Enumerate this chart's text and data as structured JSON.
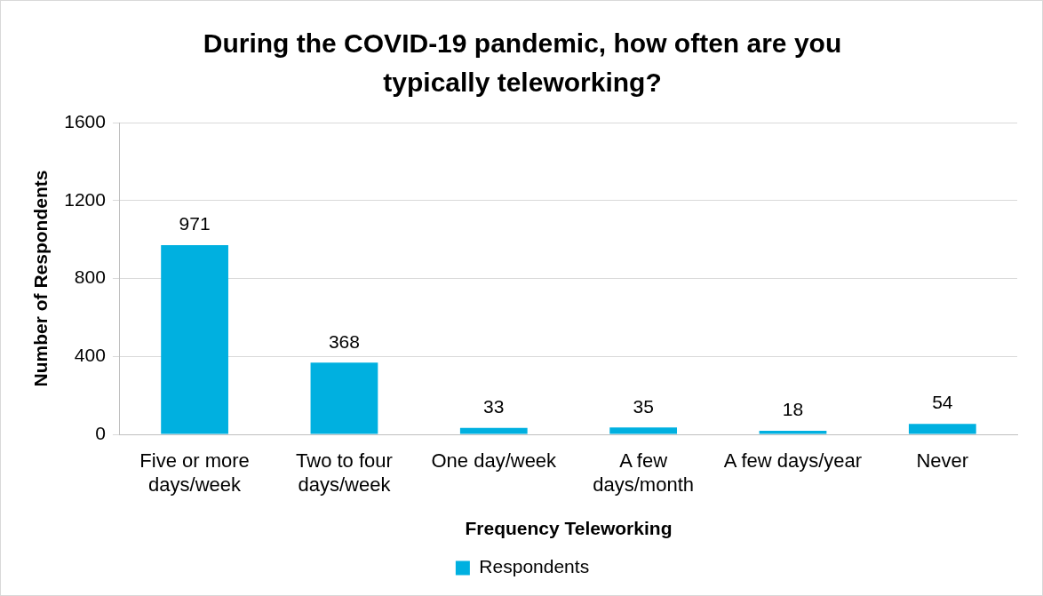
{
  "chart_data": {
    "type": "bar",
    "title": "During the COVID-19 pandemic, how often are you typically teleworking?",
    "xlabel": "Frequency Teleworking",
    "ylabel": "Number of Respondents",
    "categories": [
      "Five or more days/week",
      "Two to four days/week",
      "One day/week",
      "A few days/month",
      "A few days/year",
      "Never"
    ],
    "series": [
      {
        "name": "Respondents",
        "color": "#00b0e0",
        "values": [
          971,
          368,
          33,
          35,
          18,
          54
        ]
      }
    ],
    "ylim": [
      0,
      1600
    ],
    "yticks": [
      0,
      400,
      800,
      1200,
      1600
    ],
    "grid": "y",
    "legend": "bottom",
    "data_labels": true
  }
}
